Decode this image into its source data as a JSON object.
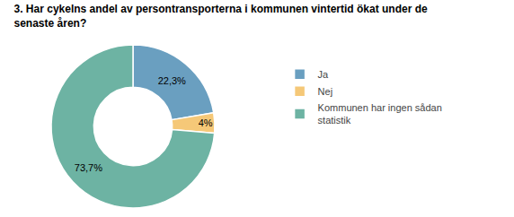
{
  "chart_data": {
    "type": "pie",
    "title": "3. Har cykelns andel av persontransporterna i kommunen vintertid ökat under de\nsenaste åren?",
    "categories": [
      "Ja",
      "Nej",
      "Kommunen har ingen sådan\nstatistik"
    ],
    "values": [
      22.3,
      4.0,
      73.7
    ],
    "value_labels": [
      "22,3%",
      "4%",
      "73,7%"
    ],
    "colors": [
      "#6a9fc0",
      "#f5c878",
      "#6db3a3"
    ],
    "data_labels": true,
    "legend": "right"
  }
}
